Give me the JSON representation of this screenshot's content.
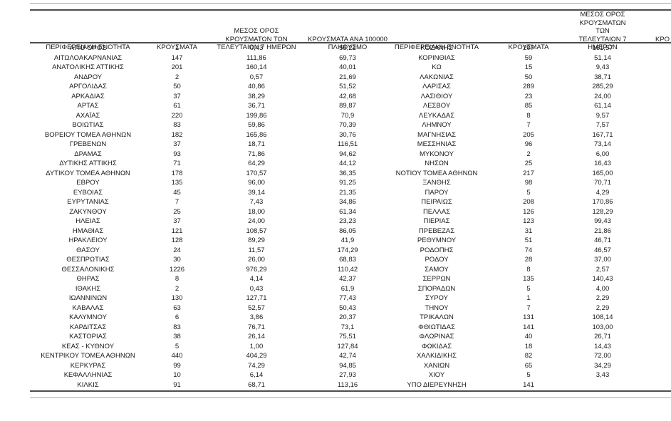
{
  "left_table": {
    "headers": {
      "region": "ΠΕΡΙΦΕΡΕΙΑΚΗ ΕΝΟΤΗΤΑ",
      "cases": "ΚΡΟΥΣΜΑΤΑ",
      "avg_7day": "ΜΕΣΟΣ ΟΡΟΣ\nΚΡΟΥΣΜΑΤΩΝ ΤΩΝ\nΤΕΛΕΥΤΑΙΩΝ 7 ΗΜΕΡΩΝ",
      "per_100k": "ΚΡΟΥΣΜΑΤΑ ΑΝΑ 100000\nΠΛΗΘΥΣΜΟ"
    },
    "rows": [
      [
        "ΑΓΙΟ ΟΡΟΣ",
        "1",
        "0,43",
        "55,22"
      ],
      [
        "ΑΙΤΩΛΟΑΚΑΡΝΑΝΙΑΣ",
        "147",
        "111,86",
        "69,73"
      ],
      [
        "ΑΝΑΤΟΛΙΚΗΣ ΑΤΤΙΚΗΣ",
        "201",
        "160,14",
        "40,01"
      ],
      [
        "ΑΝΔΡΟΥ",
        "2",
        "0,57",
        "21,69"
      ],
      [
        "ΑΡΓΟΛΙΔΑΣ",
        "50",
        "40,86",
        "51,52"
      ],
      [
        "ΑΡΚΑΔΙΑΣ",
        "37",
        "38,29",
        "42,68"
      ],
      [
        "ΑΡΤΑΣ",
        "61",
        "36,71",
        "89,87"
      ],
      [
        "ΑΧΑΪΑΣ",
        "220",
        "199,86",
        "70,9"
      ],
      [
        "ΒΟΙΩΤΙΑΣ",
        "83",
        "59,86",
        "70,39"
      ],
      [
        "ΒΟΡΕΙΟΥ ΤΟΜΕΑ ΑΘΗΝΩΝ",
        "182",
        "165,86",
        "30,76"
      ],
      [
        "ΓΡΕΒΕΝΩΝ",
        "37",
        "18,71",
        "116,51"
      ],
      [
        "ΔΡΑΜΑΣ",
        "93",
        "71,86",
        "94,62"
      ],
      [
        "ΔΥΤΙΚΗΣ ΑΤΤΙΚΗΣ",
        "71",
        "64,29",
        "44,12"
      ],
      [
        "ΔΥΤΙΚΟΥ ΤΟΜΕΑ ΑΘΗΝΩΝ",
        "178",
        "170,57",
        "36,35"
      ],
      [
        "ΕΒΡΟΥ",
        "135",
        "96,00",
        "91,25"
      ],
      [
        "ΕΥΒΟΙΑΣ",
        "45",
        "39,14",
        "21,35"
      ],
      [
        "ΕΥΡΥΤΑΝΙΑΣ",
        "7",
        "7,43",
        "34,86"
      ],
      [
        "ΖΑΚΥΝΘΟΥ",
        "25",
        "18,00",
        "61,34"
      ],
      [
        "ΗΛΕΙΑΣ",
        "37",
        "24,00",
        "23,23"
      ],
      [
        "ΗΜΑΘΙΑΣ",
        "121",
        "108,57",
        "86,05"
      ],
      [
        "ΗΡΑΚΛΕΙΟΥ",
        "128",
        "89,29",
        "41,9"
      ],
      [
        "ΘΑΣΟΥ",
        "24",
        "11,57",
        "174,29"
      ],
      [
        "ΘΕΣΠΡΩΤΙΑΣ",
        "30",
        "26,00",
        "68,83"
      ],
      [
        "ΘΕΣΣΑΛΟΝΙΚΗΣ",
        "1226",
        "976,29",
        "110,42"
      ],
      [
        "ΘΗΡΑΣ",
        "8",
        "4,14",
        "42,37"
      ],
      [
        "ΙΘΑΚΗΣ",
        "2",
        "0,43",
        "61,9"
      ],
      [
        "ΙΩΑΝΝΙΝΩΝ",
        "130",
        "127,71",
        "77,43"
      ],
      [
        "ΚΑΒΑΛΑΣ",
        "63",
        "52,57",
        "50,43"
      ],
      [
        "ΚΑΛΥΜΝΟΥ",
        "6",
        "3,86",
        "20,37"
      ],
      [
        "ΚΑΡΔΙΤΣΑΣ",
        "83",
        "76,71",
        "73,1"
      ],
      [
        "ΚΑΣΤΟΡΙΑΣ",
        "38",
        "26,14",
        "75,51"
      ],
      [
        "ΚΕΑΣ - ΚΥΘΝΟΥ",
        "5",
        "1,00",
        "127,84"
      ],
      [
        "ΚΕΝΤΡΙΚΟΥ ΤΟΜΕΑ ΑΘΗΝΩΝ",
        "440",
        "404,29",
        "42,74"
      ],
      [
        "ΚΕΡΚΥΡΑΣ",
        "99",
        "74,29",
        "94,85"
      ],
      [
        "ΚΕΦΑΛΛΗΝΙΑΣ",
        "10",
        "6,14",
        "27,93"
      ],
      [
        "ΚΙΛΚΙΣ",
        "91",
        "68,71",
        "113,16"
      ]
    ]
  },
  "right_table": {
    "headers": {
      "region": "ΠΕΡΙΦΕΡΕΙΑΚΗ ΕΝΟΤΗΤΑ",
      "cases": "ΚΡΟΥΣΜΑΤΑ",
      "avg_7day": "ΜΕΣΟΣ ΟΡΟΣ\nΚΡΟΥΣΜΑΤΩΝ ΤΩΝ\nΤΕΛΕΥΤΑΙΩΝ 7 ΗΜΕΡΩΝ",
      "per_100k_truncated": "ΚΡΟ"
    },
    "rows": [
      [
        "ΚΟΖΑΝΗΣ",
        "207",
        "161,57"
      ],
      [
        "ΚΟΡΙΝΘΙΑΣ",
        "59",
        "51,14"
      ],
      [
        "ΚΩ",
        "15",
        "9,43"
      ],
      [
        "ΛΑΚΩΝΙΑΣ",
        "50",
        "38,71"
      ],
      [
        "ΛΑΡΙΣΑΣ",
        "289",
        "285,29"
      ],
      [
        "ΛΑΣΙΘΙΟΥ",
        "23",
        "24,00"
      ],
      [
        "ΛΕΣΒΟΥ",
        "85",
        "61,14"
      ],
      [
        "ΛΕΥΚΑΔΑΣ",
        "8",
        "9,57"
      ],
      [
        "ΛΗΜΝΟΥ",
        "7",
        "7,57"
      ],
      [
        "ΜΑΓΝΗΣΙΑΣ",
        "205",
        "167,71"
      ],
      [
        "ΜΕΣΣΗΝΙΑΣ",
        "96",
        "73,14"
      ],
      [
        "ΜΥΚΟΝΟΥ",
        "2",
        "6,00"
      ],
      [
        "ΝΗΣΩΝ",
        "25",
        "16,43"
      ],
      [
        "ΝΟΤΙΟΥ ΤΟΜΕΑ ΑΘΗΝΩΝ",
        "217",
        "165,00"
      ],
      [
        "ΞΑΝΘΗΣ",
        "98",
        "70,71"
      ],
      [
        "ΠΑΡΟΥ",
        "5",
        "4,29"
      ],
      [
        "ΠΕΙΡΑΙΩΣ",
        "208",
        "170,86"
      ],
      [
        "ΠΕΛΛΑΣ",
        "126",
        "128,29"
      ],
      [
        "ΠΙΕΡΙΑΣ",
        "123",
        "99,43"
      ],
      [
        "ΠΡΕΒΕΖΑΣ",
        "31",
        "21,86"
      ],
      [
        "ΡΕΘΥΜΝΟΥ",
        "51",
        "46,71"
      ],
      [
        "ΡΟΔΟΠΗΣ",
        "74",
        "46,57"
      ],
      [
        "ΡΟΔΟΥ",
        "28",
        "37,00"
      ],
      [
        "ΣΑΜΟΥ",
        "8",
        "2,57"
      ],
      [
        "ΣΕΡΡΩΝ",
        "135",
        "140,43"
      ],
      [
        "ΣΠΟΡΑΔΩΝ",
        "5",
        "4,00"
      ],
      [
        "ΣΥΡΟΥ",
        "1",
        "2,29"
      ],
      [
        "ΤΗΝΟΥ",
        "7",
        "2,29"
      ],
      [
        "ΤΡΙΚΑΛΩΝ",
        "131",
        "108,14"
      ],
      [
        "ΦΘΙΩΤΙΔΑΣ",
        "141",
        "103,00"
      ],
      [
        "ΦΛΩΡΙΝΑΣ",
        "40",
        "26,71"
      ],
      [
        "ΦΩΚΙΔΑΣ",
        "18",
        "14,43"
      ],
      [
        "ΧΑΛΚΙΔΙΚΗΣ",
        "82",
        "72,00"
      ],
      [
        "ΧΑΝΙΩΝ",
        "65",
        "34,29"
      ],
      [
        "ΧΙΟΥ",
        "5",
        "3,43"
      ],
      [
        "ΥΠΟ ΔΙΕΡΕΥΝΗΣΗ",
        "141",
        ""
      ]
    ]
  },
  "colors": {
    "background": "#ffffff",
    "text": "#1a1a1a",
    "rule_dark": "#4d4d4d",
    "rule_light": "#a8a8a8"
  }
}
